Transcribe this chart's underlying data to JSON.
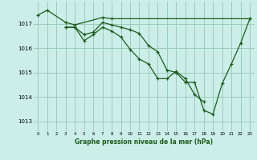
{
  "background_color": "#cceee8",
  "grid_color": "#99ccbb",
  "line_color": "#1a5c1a",
  "xlabel": "Graphe pression niveau de la mer (hPa)",
  "xlim": [
    -0.5,
    23.5
  ],
  "ylim": [
    1012.6,
    1017.9
  ],
  "yticks": [
    1013,
    1014,
    1015,
    1016,
    1017
  ],
  "xticks": [
    0,
    1,
    2,
    3,
    4,
    5,
    6,
    7,
    8,
    9,
    10,
    11,
    12,
    13,
    14,
    15,
    16,
    17,
    18,
    19,
    20,
    21,
    22,
    23
  ],
  "series": [
    {
      "x": [
        0,
        1,
        3,
        4,
        7,
        8,
        23
      ],
      "y": [
        1017.35,
        1017.55,
        1017.05,
        1016.95,
        1017.25,
        1017.2,
        1017.2
      ]
    },
    {
      "x": [
        3,
        4,
        5,
        6,
        7,
        8,
        9,
        10,
        11,
        12,
        13,
        14,
        15,
        16,
        17,
        18,
        19,
        20,
        21,
        22,
        23
      ],
      "y": [
        1016.85,
        1016.85,
        1016.55,
        1016.65,
        1017.05,
        1016.95,
        1016.85,
        1016.75,
        1016.6,
        1016.1,
        1015.85,
        1015.1,
        1015.0,
        1014.6,
        1014.6,
        1013.45,
        1013.3,
        1014.55,
        1015.35,
        1016.2,
        1017.2
      ]
    },
    {
      "x": [
        3,
        4,
        5,
        6,
        7,
        8,
        9,
        10,
        11,
        12,
        13,
        14,
        15,
        16,
        17,
        18
      ],
      "y": [
        1016.85,
        1016.85,
        1016.3,
        1016.55,
        1016.85,
        1016.7,
        1016.45,
        1015.95,
        1015.55,
        1015.35,
        1014.75,
        1014.75,
        1015.05,
        1014.75,
        1014.1,
        1013.8
      ]
    }
  ]
}
